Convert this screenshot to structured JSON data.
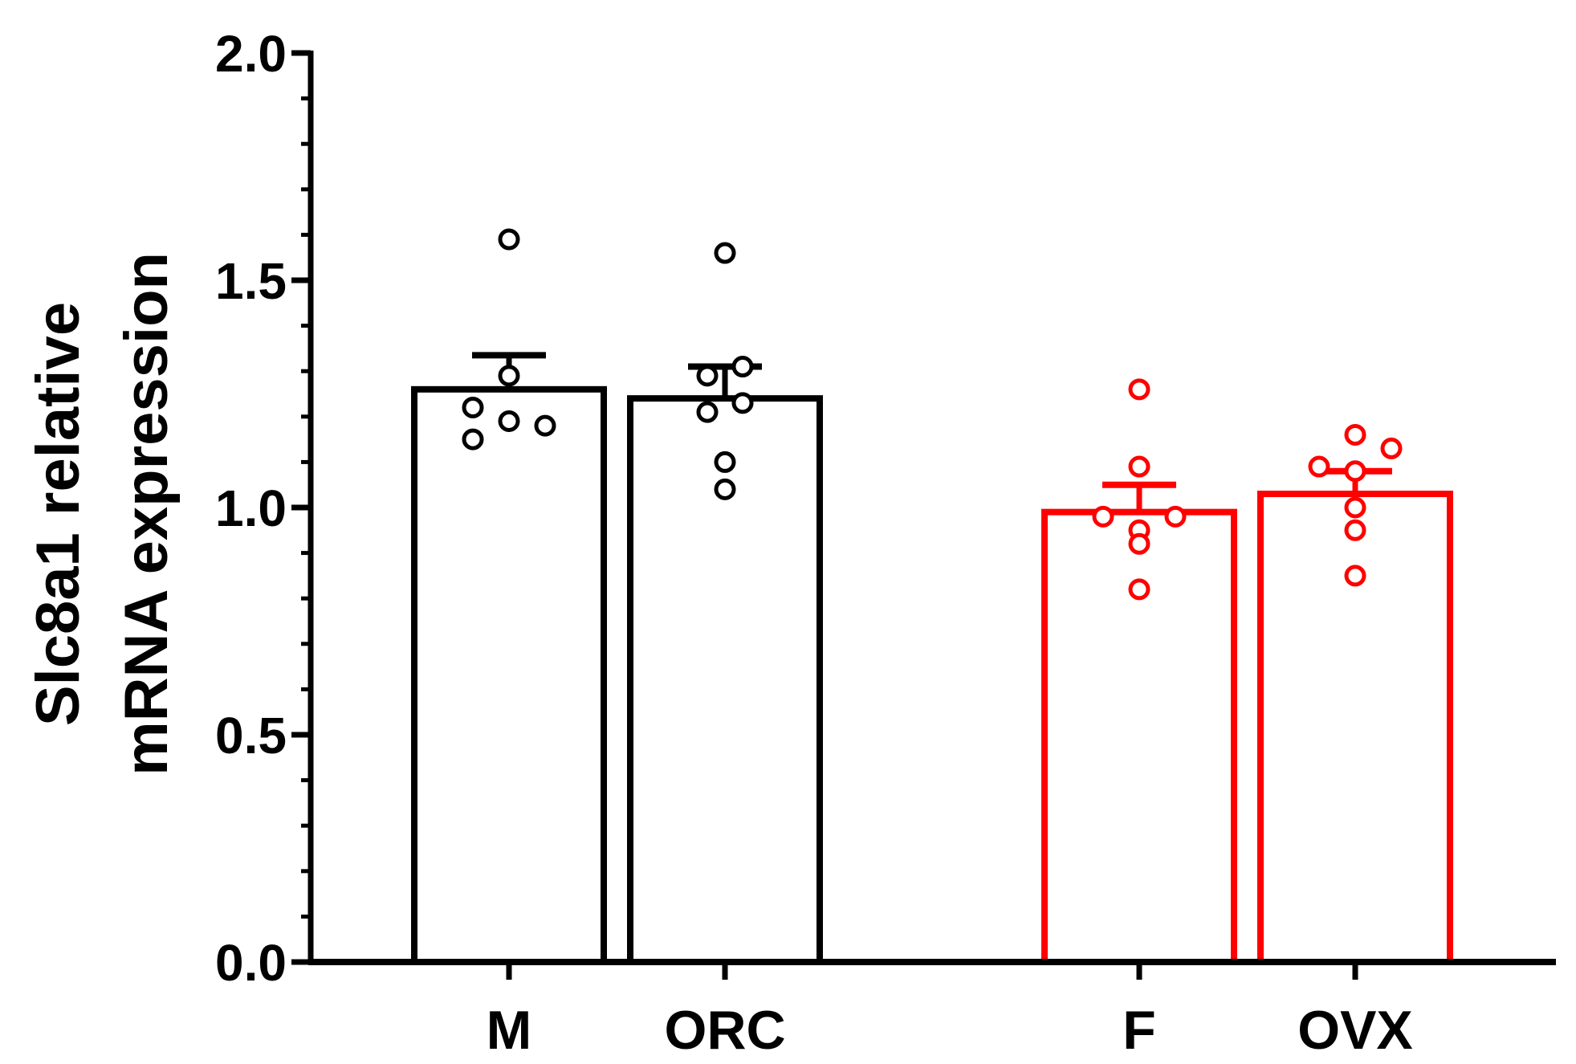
{
  "chart_data": {
    "type": "bar",
    "title": "",
    "xlabel": "",
    "ylabel_lines": [
      "Slc8a1 relative",
      "mRNA expression"
    ],
    "ylim": [
      0,
      2.0
    ],
    "yticks": [
      {
        "value": 0.0,
        "label": "0.0"
      },
      {
        "value": 0.5,
        "label": "0.5"
      },
      {
        "value": 1.0,
        "label": "1.0"
      },
      {
        "value": 1.5,
        "label": "1.5"
      },
      {
        "value": 2.0,
        "label": "2.0"
      }
    ],
    "minor_tick_step": 0.1,
    "colors": {
      "male": "#000000",
      "female": "#ff0000"
    },
    "groups": [
      {
        "category": "M",
        "color": "#000000",
        "mean": 1.26,
        "sem": 0.075,
        "points": [
          1.59,
          1.29,
          1.22,
          1.19,
          1.18,
          1.15
        ]
      },
      {
        "category": "ORC",
        "color": "#000000",
        "mean": 1.24,
        "sem": 0.07,
        "points": [
          1.56,
          1.31,
          1.29,
          1.23,
          1.21,
          1.1,
          1.04
        ]
      },
      {
        "category": "F",
        "color": "#ff0000",
        "mean": 0.99,
        "sem": 0.06,
        "points": [
          1.26,
          1.09,
          0.98,
          0.98,
          0.95,
          0.92,
          0.82
        ]
      },
      {
        "category": "OVX",
        "color": "#ff0000",
        "mean": 1.03,
        "sem": 0.05,
        "points": [
          1.16,
          1.13,
          1.09,
          1.08,
          1.0,
          0.95,
          0.85
        ]
      }
    ]
  }
}
